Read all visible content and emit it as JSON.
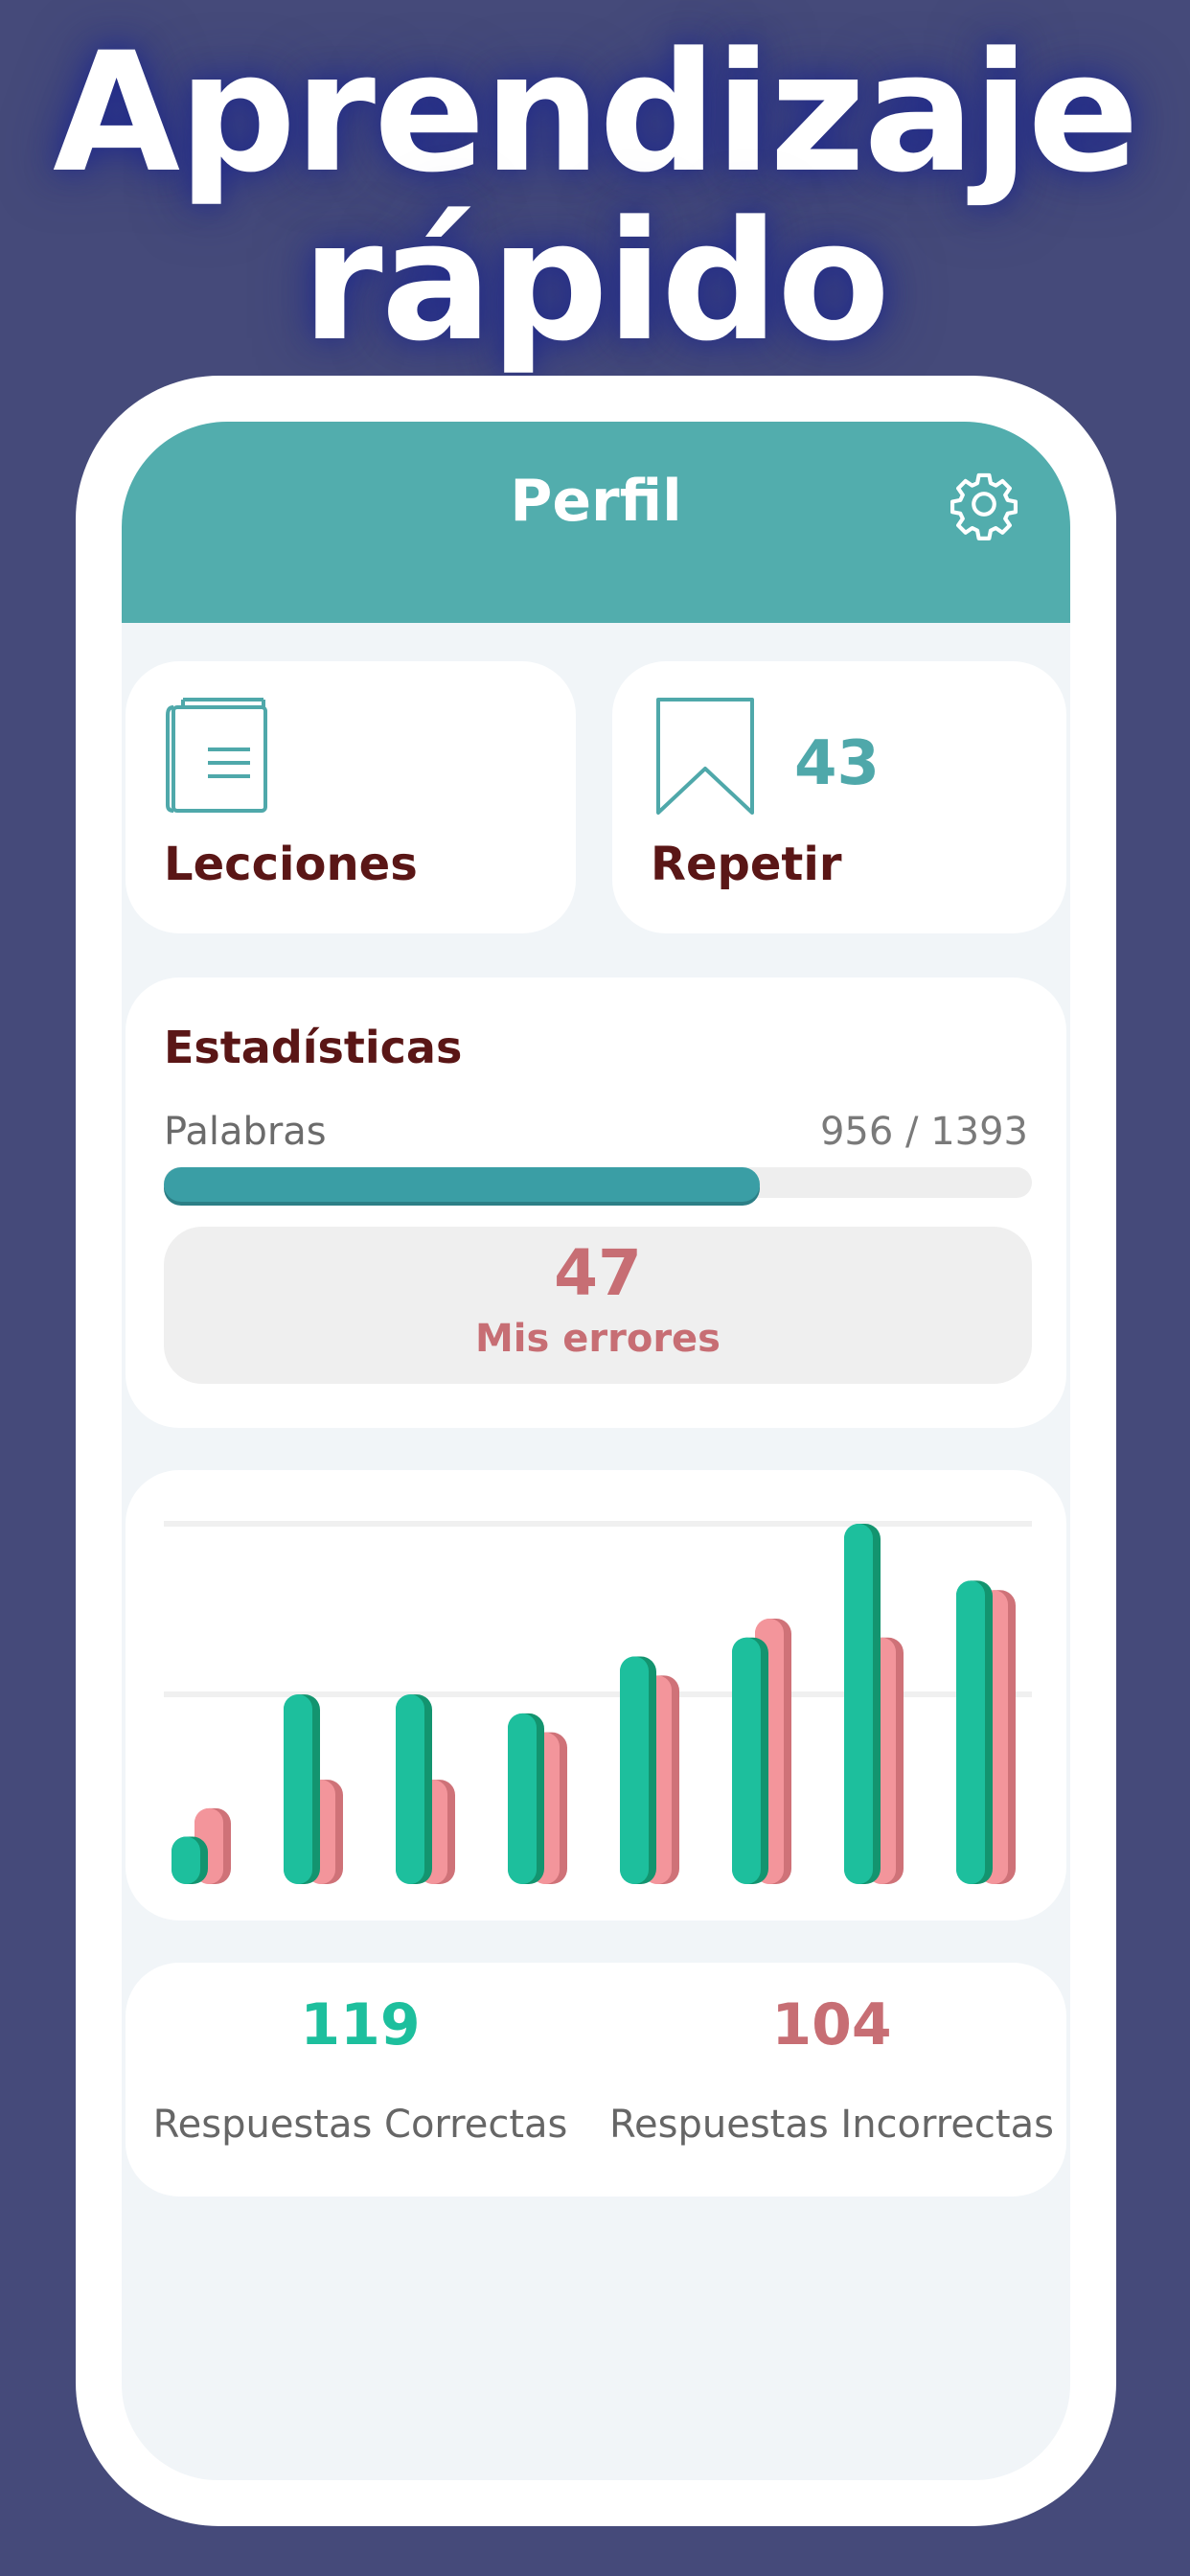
{
  "headline": {
    "line1": "Aprendizaje",
    "line2": "rápido"
  },
  "header": {
    "title": "Perfil",
    "settings_icon": "gear-icon"
  },
  "cards": {
    "lessons": {
      "label": "Lecciones",
      "icon": "book-icon"
    },
    "repeat": {
      "label": "Repetir",
      "icon": "bookmark-icon",
      "count": "43"
    }
  },
  "stats": {
    "title": "Estadísticas",
    "words_label": "Palabras",
    "words_count": "956 / 1393",
    "progress": 0.686,
    "errors_count": "47",
    "errors_label": "Mis errores"
  },
  "chart_data": {
    "type": "bar",
    "categories": [
      "",
      "",
      "",
      "",
      "",
      "",
      "",
      ""
    ],
    "series": [
      {
        "values": [
          1,
          4,
          4,
          3.6,
          4.8,
          5.2,
          7.6,
          6.4
        ]
      },
      {
        "values": [
          1.6,
          2.2,
          2.2,
          3.2,
          4.4,
          5.6,
          5.2,
          6.2
        ]
      }
    ],
    "ylim": [
      0,
      7.6
    ],
    "grid": true,
    "colors": {
      "correct": "#1dbf9d",
      "correct_shadow": "#13946f",
      "incorrect": "#f3959b",
      "incorrect_shadow": "#cf7278"
    }
  },
  "answers": {
    "correct_count": "119",
    "correct_label": "Respuestas Correctas",
    "incorrect_count": "104",
    "incorrect_label": "Respuestas Incorrectas"
  },
  "colors": {
    "background": "#454a7a",
    "accent": "#52adad",
    "title": "#5a1616",
    "error": "#c76e74",
    "correct": "#1dbf9d"
  }
}
